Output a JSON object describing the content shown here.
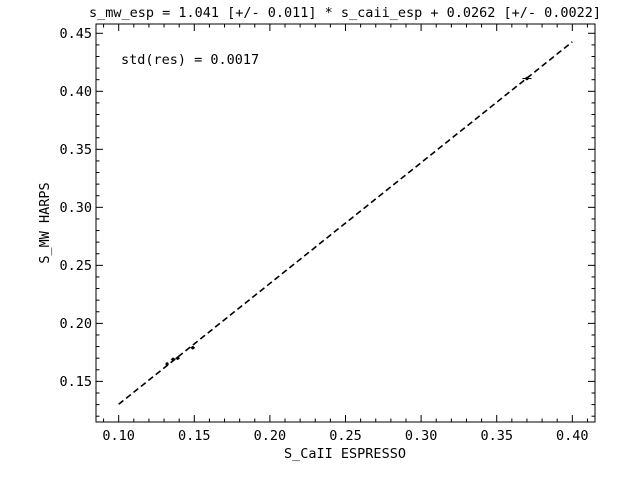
{
  "chart_data": {
    "type": "scatter",
    "title": "s_mw_esp = 1.041 [+/- 0.011] * s_caii_esp + 0.0262 [+/- 0.0022]",
    "xlabel": "S_CaII ESPRESSO",
    "ylabel": "S_MW HARPS",
    "annotation": "std(res) = 0.0017",
    "xlim": [
      0.085,
      0.415
    ],
    "ylim": [
      0.115,
      0.458
    ],
    "x_ticks": [
      "0.10",
      "0.15",
      "0.20",
      "0.25",
      "0.30",
      "0.35",
      "0.40"
    ],
    "y_ticks": [
      "0.15",
      "0.20",
      "0.25",
      "0.30",
      "0.35",
      "0.40",
      "0.45"
    ],
    "grid": false,
    "series": [
      {
        "kind": "points",
        "x": [
          0.132,
          0.136,
          0.139,
          0.149,
          0.37
        ],
        "y": [
          0.165,
          0.169,
          0.17,
          0.179,
          0.411
        ],
        "xerr": [
          0.001,
          0.0015,
          0.0015,
          0.0015,
          0.003
        ],
        "yerr": [
          0.0015,
          0.0015,
          0.0015,
          0.0015,
          0.0015
        ],
        "color": "#000000"
      },
      {
        "kind": "fit-line",
        "style": "dashed",
        "x": [
          0.1,
          0.4
        ],
        "y": [
          0.1303,
          0.4426
        ],
        "color": "#000000"
      }
    ]
  }
}
